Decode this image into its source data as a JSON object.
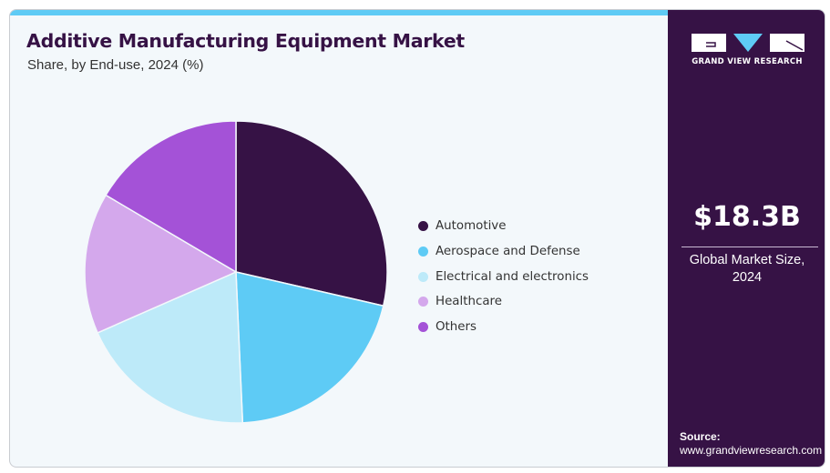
{
  "header": {
    "title": "Additive Manufacturing Equipment Market",
    "subtitle": "Share, by End-use, 2024 (%)"
  },
  "colors": {
    "accent_bar": "#5ecbf5",
    "side_panel": "#361245",
    "background": "#f3f8fb"
  },
  "chart_data": {
    "type": "pie",
    "title": "Additive Manufacturing Equipment Market",
    "subtitle": "Share, by End-use, 2024 (%)",
    "start_angle": "12 o'clock, clockwise",
    "legend_position": "right",
    "categories": [
      "Automotive",
      "Aerospace and Defense",
      "Electrical and electronics",
      "Healthcare",
      "Others"
    ],
    "values": [
      28.6,
      20.7,
      19.1,
      15.1,
      16.5
    ],
    "colors": [
      "#361245",
      "#5ecbf5",
      "#bdeaf9",
      "#d4a8ec",
      "#a452d7"
    ]
  },
  "legend": [
    {
      "label": "Automotive",
      "color": "#361245"
    },
    {
      "label": "Aerospace and Defense",
      "color": "#5ecbf5"
    },
    {
      "label": "Electrical and electronics",
      "color": "#bdeaf9"
    },
    {
      "label": "Healthcare",
      "color": "#d4a8ec"
    },
    {
      "label": "Others",
      "color": "#a452d7"
    }
  ],
  "side_panel": {
    "logo_text": "GRAND VIEW RESEARCH",
    "market_value": "$18.3B",
    "market_label_line1": "Global Market Size,",
    "market_label_line2": "2024",
    "source_label": "Source:",
    "source_url": "www.grandviewresearch.com"
  }
}
